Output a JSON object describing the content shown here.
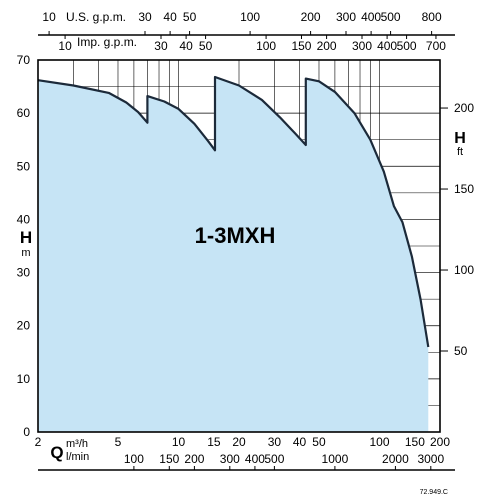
{
  "chart_data": {
    "type": "area",
    "title": "1-3MXH",
    "scale_x": "log",
    "grid": true,
    "colors": {
      "fill": "#c6e4f5",
      "curve": "#1c2a3a",
      "grid": "#000000"
    },
    "xlim": [
      2,
      200
    ],
    "ylim": [
      0,
      70
    ],
    "y_label": {
      "main": "H",
      "unit": "m"
    },
    "right_label": {
      "main": "H",
      "unit": "ft"
    },
    "q_label": {
      "main": "Q",
      "unit1": "m³/h",
      "unit2": "l/min"
    },
    "usgpm_label": "U.S. g.p.m.",
    "impgpm_label": "Imp. g.p.m.",
    "code": "72.949.C",
    "x_ticks": [
      {
        "v": 2,
        "label": "2"
      },
      {
        "v": 5,
        "label": "5"
      },
      {
        "v": 10,
        "label": "10"
      },
      {
        "v": 15,
        "label": "15"
      },
      {
        "v": 20,
        "label": "20"
      },
      {
        "v": 30,
        "label": "30"
      },
      {
        "v": 40,
        "label": "40"
      },
      {
        "v": 50,
        "label": "50"
      },
      {
        "v": 100,
        "label": "100"
      },
      {
        "v": 150,
        "label": "150"
      },
      {
        "v": 200,
        "label": "200"
      }
    ],
    "lmin_ticks": [
      {
        "v": 100,
        "label": "100"
      },
      {
        "v": 150,
        "label": "150"
      },
      {
        "v": 200,
        "label": "200"
      },
      {
        "v": 300,
        "label": "300"
      },
      {
        "v": 400,
        "label": "400"
      },
      {
        "v": 500,
        "label": "500"
      },
      {
        "v": 1000,
        "label": "1000"
      },
      {
        "v": 2000,
        "label": "2000"
      },
      {
        "v": 3000,
        "label": "3000"
      }
    ],
    "usgpm_ticks": [
      {
        "v": 10,
        "label": "10"
      },
      {
        "v": 30,
        "label": "30"
      },
      {
        "v": 40,
        "label": "40"
      },
      {
        "v": 50,
        "label": "50"
      },
      {
        "v": 100,
        "label": "100"
      },
      {
        "v": 200,
        "label": "200"
      },
      {
        "v": 300,
        "label": "300"
      },
      {
        "v": 400,
        "label": "400"
      },
      {
        "v": 500,
        "label": "500"
      },
      {
        "v": 800,
        "label": "800"
      }
    ],
    "impgpm_ticks": [
      {
        "v": 10,
        "label": "10"
      },
      {
        "v": 30,
        "label": "30"
      },
      {
        "v": 40,
        "label": "40"
      },
      {
        "v": 50,
        "label": "50"
      },
      {
        "v": 100,
        "label": "100"
      },
      {
        "v": 150,
        "label": "150"
      },
      {
        "v": 200,
        "label": "200"
      },
      {
        "v": 300,
        "label": "300"
      },
      {
        "v": 400,
        "label": "400"
      },
      {
        "v": 500,
        "label": "500"
      },
      {
        "v": 700,
        "label": "700"
      }
    ],
    "y_ticks": [
      {
        "v": 0,
        "label": "0"
      },
      {
        "v": 10,
        "label": "10"
      },
      {
        "v": 20,
        "label": "20"
      },
      {
        "v": 30,
        "label": "30"
      },
      {
        "v": 40,
        "label": "40"
      },
      {
        "v": 50,
        "label": "50"
      },
      {
        "v": 60,
        "label": "60"
      },
      {
        "v": 70,
        "label": "70"
      }
    ],
    "ft_ticks": [
      {
        "v": 50,
        "label": "50"
      },
      {
        "v": 100,
        "label": "100"
      },
      {
        "v": 150,
        "label": "150"
      },
      {
        "v": 200,
        "label": "200"
      }
    ],
    "curve": [
      [
        2,
        66.2
      ],
      [
        3,
        65.2
      ],
      [
        4.5,
        63.8
      ],
      [
        5.5,
        62.0
      ],
      [
        6.3,
        60.2
      ],
      [
        7.0,
        58.2
      ],
      [
        7.0,
        63.2
      ],
      [
        8.5,
        62.2
      ],
      [
        10,
        60.8
      ],
      [
        12,
        58.0
      ],
      [
        14,
        54.8
      ],
      [
        15.2,
        53.0
      ],
      [
        15.2,
        66.8
      ],
      [
        20,
        65.2
      ],
      [
        26,
        62.5
      ],
      [
        32,
        59.2
      ],
      [
        38,
        56.2
      ],
      [
        43,
        54.0
      ],
      [
        43,
        66.5
      ],
      [
        50,
        66.0
      ],
      [
        60,
        64.0
      ],
      [
        75,
        60.0
      ],
      [
        90,
        55.0
      ],
      [
        105,
        49.0
      ],
      [
        118,
        42.5
      ],
      [
        130,
        39.5
      ],
      [
        145,
        33.0
      ],
      [
        160,
        25.0
      ],
      [
        175,
        16.0
      ]
    ]
  }
}
